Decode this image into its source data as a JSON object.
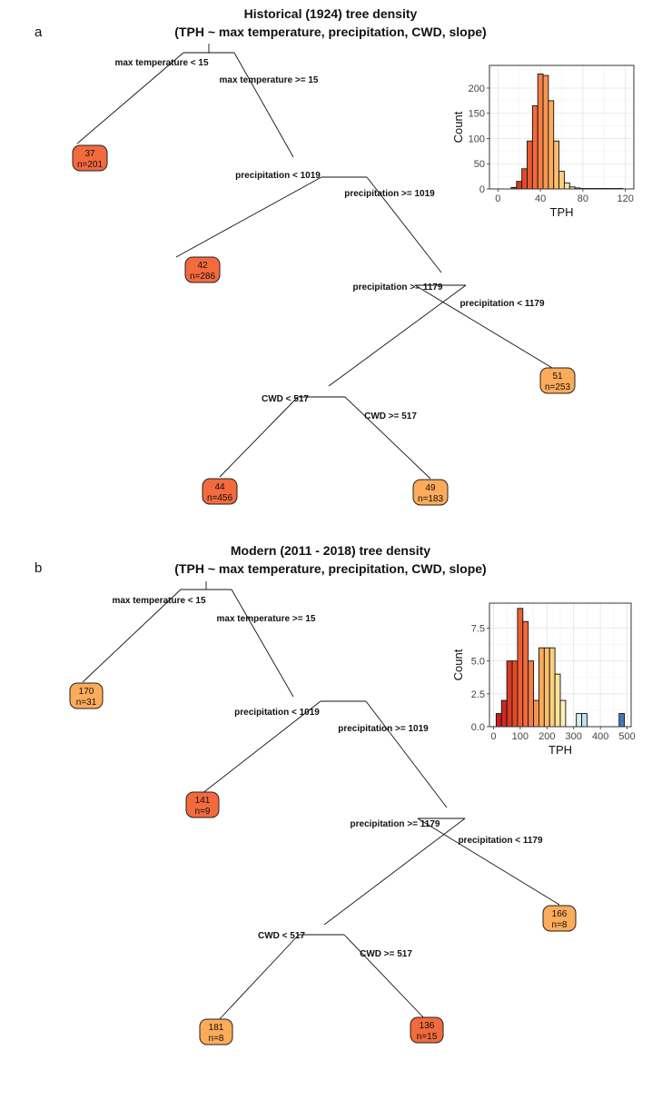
{
  "panels": [
    {
      "letter": "a",
      "title_line1": "Historical (1924) tree density",
      "title_line2": "(TPH ~ max temperature, precipitation, CWD, slope)",
      "splits": [
        {
          "left_label": "max temperature < 15",
          "right_label": "max temperature >= 15"
        },
        {
          "left_label": "precipitation < 1019",
          "right_label": "precipitation >= 1019"
        },
        {
          "left_label": "precipitation >= 1179",
          "right_label": "precipitation < 1179"
        },
        {
          "left_label": "CWD < 517",
          "right_label": "CWD >= 517"
        }
      ],
      "leaves": [
        {
          "value": "37",
          "n": "n=201",
          "color": "#f26a3d"
        },
        {
          "value": "42",
          "n": "n=286",
          "color": "#f26a3d"
        },
        {
          "value": "51",
          "n": "n=253",
          "color": "#fbab5a"
        },
        {
          "value": "44",
          "n": "n=456",
          "color": "#f26a3d"
        },
        {
          "value": "49",
          "n": "n=183",
          "color": "#fbab5a"
        }
      ],
      "histogram": {
        "xlabel": "TPH",
        "ylabel": "Count",
        "xlim": [
          -8,
          128
        ],
        "ylim": [
          0,
          245
        ],
        "xticks": [
          0,
          40,
          80,
          120
        ],
        "yticks": [
          0,
          50,
          100,
          150,
          200
        ],
        "ytick_labels": [
          "0",
          "50",
          "100",
          "150",
          "200"
        ],
        "bin_width": 5,
        "bins": [
          {
            "x": 15,
            "count": 3,
            "color": "#c81e22"
          },
          {
            "x": 20,
            "count": 15,
            "color": "#d53a24"
          },
          {
            "x": 25,
            "count": 40,
            "color": "#e24b2a"
          },
          {
            "x": 30,
            "count": 95,
            "color": "#ea5b30"
          },
          {
            "x": 35,
            "count": 165,
            "color": "#f26a3d"
          },
          {
            "x": 40,
            "count": 228,
            "color": "#f47e45"
          },
          {
            "x": 45,
            "count": 225,
            "color": "#f89651"
          },
          {
            "x": 50,
            "count": 175,
            "color": "#fbab5a"
          },
          {
            "x": 55,
            "count": 95,
            "color": "#fdbd6a"
          },
          {
            "x": 60,
            "count": 35,
            "color": "#fdd07e"
          },
          {
            "x": 65,
            "count": 12,
            "color": "#fee39a"
          },
          {
            "x": 70,
            "count": 4,
            "color": "#fff0b4"
          },
          {
            "x": 75,
            "count": 2,
            "color": "#fff6c8"
          },
          {
            "x": 80,
            "count": 1,
            "color": "#ffffd8"
          },
          {
            "x": 85,
            "count": 1,
            "color": "#ffffe4"
          },
          {
            "x": 90,
            "count": 1,
            "color": "#ffffe8"
          },
          {
            "x": 95,
            "count": 1,
            "color": "#ffffec"
          },
          {
            "x": 100,
            "count": 1,
            "color": "#ffffee"
          },
          {
            "x": 105,
            "count": 1,
            "color": "#fffff0"
          },
          {
            "x": 110,
            "count": 1,
            "color": "#fffff2"
          },
          {
            "x": 115,
            "count": 1,
            "color": "#fffff4"
          }
        ]
      }
    },
    {
      "letter": "b",
      "title_line1": "Modern (2011 - 2018) tree density",
      "title_line2": "(TPH ~ max temperature, precipitation, CWD, slope)",
      "splits": [
        {
          "left_label": "max temperature < 15",
          "right_label": "max temperature >= 15"
        },
        {
          "left_label": "precipitation < 1019",
          "right_label": "precipitation >= 1019"
        },
        {
          "left_label": "precipitation >= 1179",
          "right_label": "precipitation < 1179"
        },
        {
          "left_label": "CWD < 517",
          "right_label": "CWD >= 517"
        }
      ],
      "leaves": [
        {
          "value": "170",
          "n": "n=31",
          "color": "#fbab5a"
        },
        {
          "value": "141",
          "n": "n=9",
          "color": "#f26a3d"
        },
        {
          "value": "166",
          "n": "n=8",
          "color": "#fbab5a"
        },
        {
          "value": "181",
          "n": "n=8",
          "color": "#fbab5a"
        },
        {
          "value": "136",
          "n": "n=15",
          "color": "#f26a3d"
        }
      ],
      "histogram": {
        "xlabel": "TPH",
        "ylabel": "Count",
        "xlim": [
          -15,
          515
        ],
        "ylim": [
          0,
          9.4
        ],
        "xticks": [
          0,
          100,
          200,
          300,
          400,
          500
        ],
        "yticks": [
          0,
          2.5,
          5,
          7.5
        ],
        "ytick_labels": [
          "0.0",
          "2.5",
          "5.0",
          "7.5"
        ],
        "bin_width": 20,
        "bins": [
          {
            "x": 20,
            "count": 1,
            "color": "#c81e22"
          },
          {
            "x": 40,
            "count": 2,
            "color": "#cf2a23"
          },
          {
            "x": 60,
            "count": 5,
            "color": "#d63a25"
          },
          {
            "x": 80,
            "count": 5,
            "color": "#e24b2a"
          },
          {
            "x": 100,
            "count": 9,
            "color": "#ec5e33"
          },
          {
            "x": 120,
            "count": 8,
            "color": "#f26a3d"
          },
          {
            "x": 140,
            "count": 5,
            "color": "#f47e45"
          },
          {
            "x": 160,
            "count": 2,
            "color": "#f89651"
          },
          {
            "x": 180,
            "count": 6,
            "color": "#fbab5a"
          },
          {
            "x": 200,
            "count": 6,
            "color": "#fdbd6a"
          },
          {
            "x": 220,
            "count": 6,
            "color": "#fdd07e"
          },
          {
            "x": 240,
            "count": 4,
            "color": "#fee39a"
          },
          {
            "x": 260,
            "count": 2,
            "color": "#fff0b4"
          },
          {
            "x": 280,
            "count": 0,
            "color": "#ffffd8"
          },
          {
            "x": 300,
            "count": 0,
            "color": "#e8f4f8"
          },
          {
            "x": 320,
            "count": 1,
            "color": "#d8ecf4"
          },
          {
            "x": 340,
            "count": 1,
            "color": "#c4e0ee"
          },
          {
            "x": 360,
            "count": 0,
            "color": "#b0d4e8"
          },
          {
            "x": 380,
            "count": 0,
            "color": "#9ec8e0"
          },
          {
            "x": 400,
            "count": 0,
            "color": "#8ab8d8"
          },
          {
            "x": 420,
            "count": 0,
            "color": "#78a8d0"
          },
          {
            "x": 440,
            "count": 0,
            "color": "#6898c8"
          },
          {
            "x": 460,
            "count": 0,
            "color": "#5888c0"
          },
          {
            "x": 480,
            "count": 1,
            "color": "#4a78b4"
          }
        ]
      }
    }
  ]
}
